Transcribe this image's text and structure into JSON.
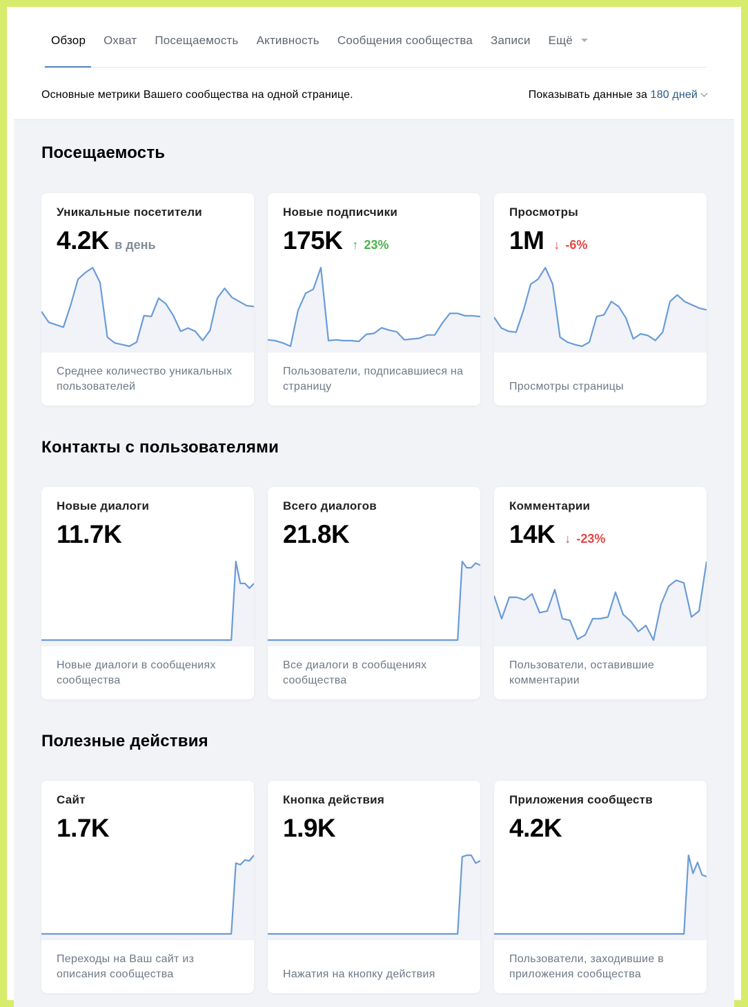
{
  "tabs": [
    {
      "label": "Обзор",
      "active": true
    },
    {
      "label": "Охват"
    },
    {
      "label": "Посещаемость"
    },
    {
      "label": "Активность"
    },
    {
      "label": "Сообщения сообщества"
    },
    {
      "label": "Записи"
    },
    {
      "label": "Ещё",
      "dropdown": true
    }
  ],
  "header": {
    "description": "Основные метрики Вашего сообщества на одной странице.",
    "period_prefix": "Показывать данные за",
    "period_value": "180 дней"
  },
  "colors": {
    "accent": "#5181b8",
    "link": "#2a5885",
    "up": "#4bb34b",
    "down": "#e64646",
    "line": "#6a9bd8"
  },
  "sections": [
    {
      "title": "Посещаемость",
      "cards": [
        {
          "title": "Уникальные посетители",
          "value": "4.2K",
          "suffix": "в день",
          "delta": "",
          "delta_dir": "",
          "footer": "Среднее количество уникальных пользователей",
          "series": [
            45,
            32,
            29,
            26,
            53,
            84,
            92,
            98,
            80,
            14,
            7,
            5,
            3,
            8,
            40,
            39,
            61,
            54,
            40,
            21,
            25,
            21,
            10,
            22,
            61,
            73,
            62,
            57,
            52,
            51
          ]
        },
        {
          "title": "Новые подписчики",
          "value": "175K",
          "delta": "23%",
          "delta_dir": "up",
          "footer": "Пользователи, подписавшиеся на страницу",
          "series": [
            10,
            9,
            6,
            2,
            47,
            68,
            73,
            100,
            9,
            10,
            9,
            9,
            8,
            17,
            18,
            25,
            22,
            20,
            10,
            11,
            12,
            16,
            16,
            31,
            43,
            43,
            40,
            40,
            39
          ]
        },
        {
          "title": "Просмотры",
          "value": "1M",
          "delta": "-6%",
          "delta_dir": "down",
          "footer": "Просмотры страницы",
          "series": [
            40,
            27,
            23,
            22,
            48,
            80,
            86,
            100,
            80,
            16,
            10,
            7,
            5,
            10,
            41,
            43,
            59,
            53,
            39,
            14,
            20,
            18,
            12,
            22,
            59,
            67,
            59,
            55,
            51,
            49
          ]
        }
      ]
    },
    {
      "title": "Контакты с пользователями",
      "cards": [
        {
          "title": "Новые диалоги",
          "value": "11.7K",
          "delta": "",
          "delta_dir": "",
          "footer": "Новые диалоги в сообщениях сообщества",
          "series": [
            0,
            0,
            0,
            0,
            0,
            0,
            0,
            0,
            0,
            0,
            0,
            0,
            0,
            0,
            0,
            0,
            0,
            0,
            0,
            0,
            0,
            0,
            0,
            0,
            0,
            0,
            0,
            0,
            0,
            0,
            0,
            0,
            0,
            0,
            0,
            0,
            0,
            0,
            0,
            0,
            0,
            0,
            0,
            100,
            72,
            72,
            66,
            72
          ]
        },
        {
          "title": "Всего диалогов",
          "value": "21.8K",
          "delta": "",
          "delta_dir": "",
          "footer": "Все диалоги в сообщениях сообщества",
          "series": [
            0,
            0,
            0,
            0,
            0,
            0,
            0,
            0,
            0,
            0,
            0,
            0,
            0,
            0,
            0,
            0,
            0,
            0,
            0,
            0,
            0,
            0,
            0,
            0,
            0,
            0,
            0,
            0,
            0,
            0,
            0,
            0,
            0,
            0,
            0,
            0,
            0,
            0,
            0,
            0,
            0,
            0,
            0,
            100,
            92,
            92,
            98,
            95
          ]
        },
        {
          "title": "Комментарии",
          "value": "14K",
          "delta": "-23%",
          "delta_dir": "down",
          "footer": "Пользователи, оставившие комментарии",
          "series": [
            60,
            33,
            58,
            58,
            55,
            62,
            40,
            42,
            67,
            33,
            31,
            9,
            14,
            33,
            33,
            35,
            64,
            38,
            30,
            18,
            25,
            8,
            50,
            71,
            78,
            75,
            35,
            42,
            100
          ]
        }
      ]
    },
    {
      "title": "Полезные действия",
      "cards": [
        {
          "title": "Сайт",
          "value": "1.7K",
          "delta": "",
          "delta_dir": "",
          "footer": "Переходы на Ваш сайт из описания сообщества",
          "series": [
            0,
            0,
            0,
            0,
            0,
            0,
            0,
            0,
            0,
            0,
            0,
            0,
            0,
            0,
            0,
            0,
            0,
            0,
            0,
            0,
            0,
            0,
            0,
            0,
            0,
            0,
            0,
            0,
            0,
            0,
            0,
            0,
            0,
            0,
            0,
            0,
            0,
            0,
            0,
            0,
            0,
            0,
            0,
            90,
            88,
            94,
            93,
            100
          ]
        },
        {
          "title": "Кнопка действия",
          "value": "1.9K",
          "delta": "",
          "delta_dir": "",
          "footer": "Нажатия на кнопку действия",
          "series": [
            0,
            0,
            0,
            0,
            0,
            0,
            0,
            0,
            0,
            0,
            0,
            0,
            0,
            0,
            0,
            0,
            0,
            0,
            0,
            0,
            0,
            0,
            0,
            0,
            0,
            0,
            0,
            0,
            0,
            0,
            0,
            0,
            0,
            0,
            0,
            0,
            0,
            0,
            0,
            0,
            0,
            0,
            0,
            98,
            100,
            100,
            90,
            93
          ]
        },
        {
          "title": "Приложения сообществ",
          "value": "4.2K",
          "delta": "",
          "delta_dir": "",
          "footer": "Пользователи, заходившие в приложения сообщества",
          "series": [
            0,
            0,
            0,
            0,
            0,
            0,
            0,
            0,
            0,
            0,
            0,
            0,
            0,
            0,
            0,
            0,
            0,
            0,
            0,
            0,
            0,
            0,
            0,
            0,
            0,
            0,
            0,
            0,
            0,
            0,
            0,
            0,
            0,
            0,
            0,
            0,
            0,
            0,
            0,
            0,
            0,
            0,
            0,
            100,
            77,
            91,
            75,
            73
          ]
        }
      ]
    }
  ]
}
